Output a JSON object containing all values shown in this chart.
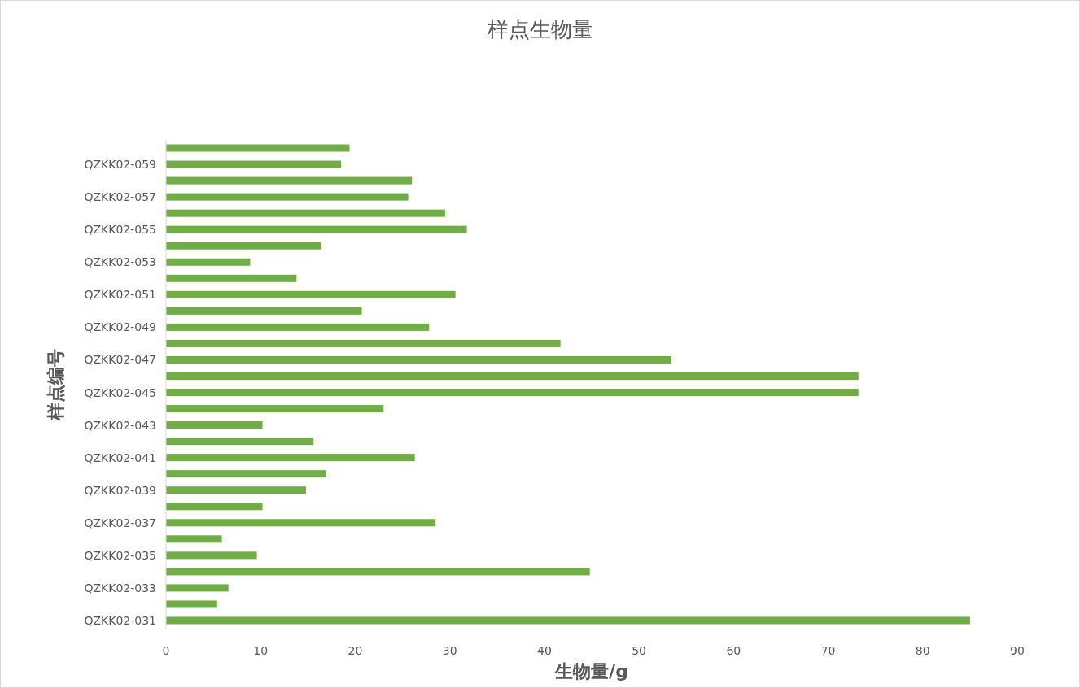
{
  "chart_data": {
    "type": "bar",
    "orientation": "horizontal",
    "title": "样点生物量",
    "xlabel": "生物量/g",
    "ylabel": "样点编号",
    "categories": [
      null,
      "QZKK02-059",
      null,
      "QZKK02-057",
      null,
      "QZKK02-055",
      null,
      "QZKK02-053",
      null,
      "QZKK02-051",
      null,
      "QZKK02-049",
      null,
      "QZKK02-047",
      null,
      "QZKK02-045",
      null,
      "QZKK02-043",
      null,
      "QZKK02-041",
      null,
      "QZKK02-039",
      null,
      "QZKK02-037",
      null,
      "QZKK02-035",
      null,
      "QZKK02-033",
      null,
      "QZKK02-031"
    ],
    "values": [
      19.4,
      18.5,
      26.0,
      25.6,
      29.5,
      31.8,
      16.4,
      8.9,
      13.8,
      30.6,
      20.7,
      27.8,
      41.7,
      53.4,
      73.2,
      73.2,
      23.0,
      10.2,
      15.6,
      26.3,
      16.9,
      14.8,
      10.2,
      28.5,
      5.9,
      9.6,
      44.8,
      6.6,
      5.4,
      85.0
    ],
    "color": "#70ad47",
    "xlim": [
      0,
      90
    ],
    "xticks": [
      0,
      10,
      20,
      30,
      40,
      50,
      60,
      70,
      80,
      90
    ]
  }
}
